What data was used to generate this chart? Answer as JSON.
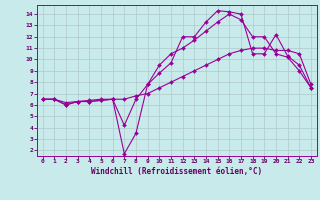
{
  "background_color": "#c8eaea",
  "grid_color": "#b0c8c8",
  "line_color": "#990099",
  "xlabel": "Windchill (Refroidissement éolien,°C)",
  "xlabel_color": "#660066",
  "xtick_color": "#660066",
  "ytick_color": "#660066",
  "xlim": [
    -0.5,
    23.5
  ],
  "ylim": [
    1.5,
    14.8
  ],
  "xticks": [
    0,
    1,
    2,
    3,
    4,
    5,
    6,
    7,
    8,
    9,
    10,
    11,
    12,
    13,
    14,
    15,
    16,
    17,
    18,
    19,
    20,
    21,
    22,
    23
  ],
  "yticks": [
    2,
    3,
    4,
    5,
    6,
    7,
    8,
    9,
    10,
    11,
    12,
    13,
    14
  ],
  "line1_x": [
    0,
    1,
    2,
    3,
    4,
    5,
    6,
    7,
    8,
    9,
    10,
    11,
    12,
    13,
    14,
    15,
    16,
    17,
    18,
    19,
    20,
    21,
    22,
    23
  ],
  "line1_y": [
    6.5,
    6.5,
    6.0,
    6.3,
    6.3,
    6.4,
    6.5,
    1.7,
    3.5,
    7.8,
    8.8,
    9.7,
    12.0,
    12.0,
    13.3,
    14.3,
    14.2,
    14.0,
    10.5,
    10.5,
    12.2,
    10.3,
    9.5,
    7.5
  ],
  "line2_x": [
    0,
    1,
    2,
    3,
    4,
    5,
    6,
    7,
    8,
    9,
    10,
    11,
    12,
    13,
    14,
    15,
    16,
    17,
    18,
    19,
    20,
    21,
    22,
    23
  ],
  "line2_y": [
    6.5,
    6.5,
    6.0,
    6.3,
    6.3,
    6.4,
    6.5,
    4.2,
    6.5,
    7.8,
    9.5,
    10.5,
    11.0,
    11.7,
    12.5,
    13.3,
    14.0,
    13.5,
    12.0,
    12.0,
    10.5,
    10.2,
    9.0,
    7.5
  ],
  "line3_x": [
    0,
    1,
    2,
    3,
    4,
    5,
    6,
    7,
    8,
    9,
    10,
    11,
    12,
    13,
    14,
    15,
    16,
    17,
    18,
    19,
    20,
    21,
    22,
    23
  ],
  "line3_y": [
    6.5,
    6.5,
    6.2,
    6.3,
    6.4,
    6.5,
    6.5,
    6.5,
    6.8,
    7.0,
    7.5,
    8.0,
    8.5,
    9.0,
    9.5,
    10.0,
    10.5,
    10.8,
    11.0,
    11.0,
    10.8,
    10.8,
    10.5,
    7.8
  ]
}
